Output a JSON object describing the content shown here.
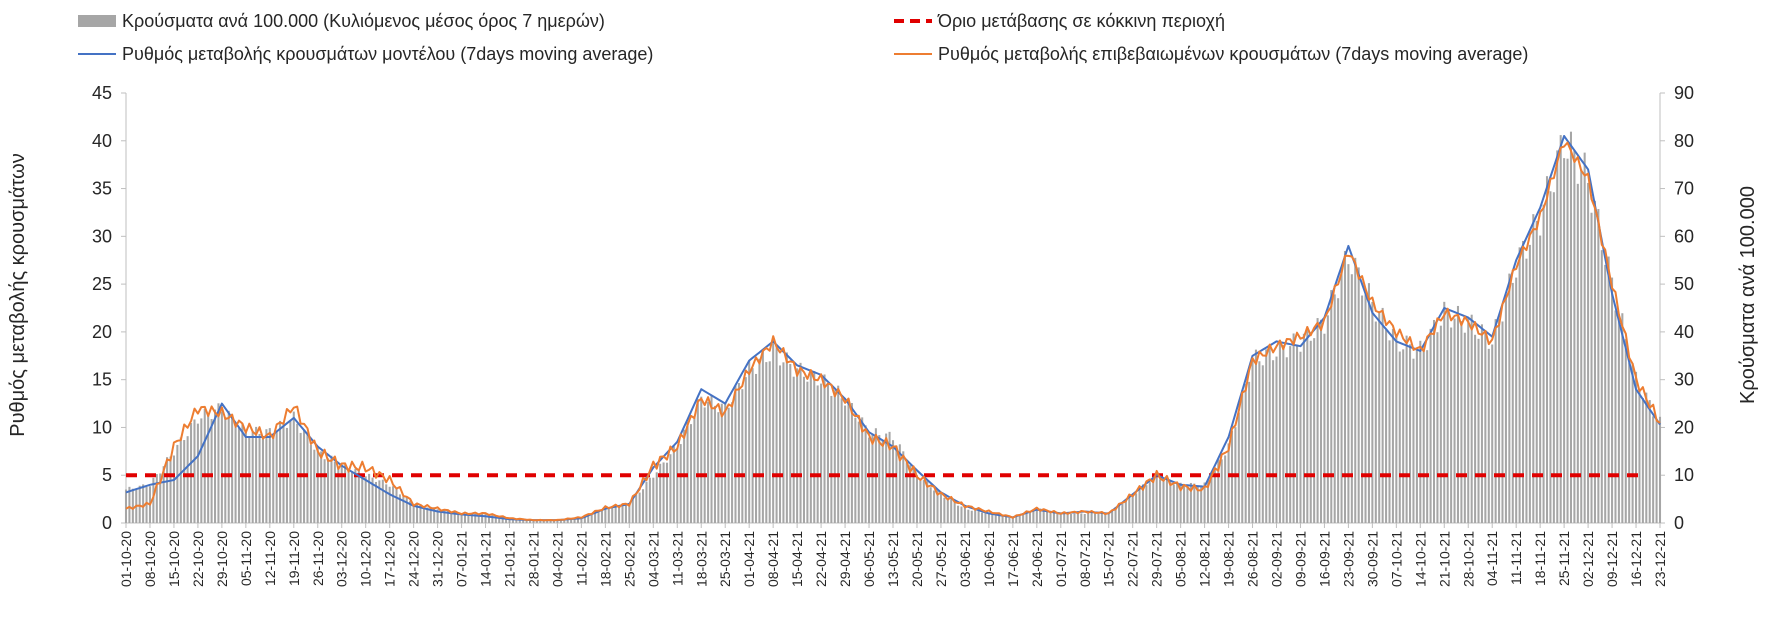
{
  "chart_data": {
    "type": "combo",
    "title": "",
    "legend": [
      {
        "key": "bars",
        "label": "Κρούσματα ανά 100.000 (Κυλιόμενος μέσος όρος 7 ημερών)",
        "color": "#a6a6a6"
      },
      {
        "key": "threshold",
        "label": "Όριο μετάβασης σε κόκκινη περιοχή",
        "color": "#e00000"
      },
      {
        "key": "model",
        "label": "Ρυθμός μεταβολής κρουσμάτων μοντέλου (7days moving average)",
        "color": "#4472c4"
      },
      {
        "key": "confirmed",
        "label": "Ρυθμός μεταβολής επιβεβαιωμένων κρουσμάτων (7days moving average)",
        "color": "#ed7d31"
      }
    ],
    "ylabel_left": "Ρυθμός μεταβολής κρουσμάτων",
    "ylabel_right": "Κρούσματα ανά 100.000",
    "ylim_left": [
      0,
      45
    ],
    "ylim_right": [
      0,
      90
    ],
    "yticks_left": [
      "0",
      "5",
      "10",
      "15",
      "20",
      "25",
      "30",
      "35",
      "40",
      "45"
    ],
    "yticks_right": [
      "0",
      "10",
      "20",
      "30",
      "40",
      "50",
      "60",
      "70",
      "80",
      "90"
    ],
    "threshold_value": 5,
    "x_labels": [
      "01-10-20",
      "08-10-20",
      "15-10-20",
      "22-10-20",
      "29-10-20",
      "05-11-20",
      "12-11-20",
      "19-11-20",
      "26-11-20",
      "03-12-20",
      "10-12-20",
      "17-12-20",
      "24-12-20",
      "31-12-20",
      "07-01-21",
      "14-01-21",
      "21-01-21",
      "28-01-21",
      "04-02-21",
      "11-02-21",
      "18-02-21",
      "25-02-21",
      "04-03-21",
      "11-03-21",
      "18-03-21",
      "25-03-21",
      "01-04-21",
      "08-04-21",
      "15-04-21",
      "22-04-21",
      "29-04-21",
      "06-05-21",
      "13-05-21",
      "20-05-21",
      "27-05-21",
      "03-06-21",
      "10-06-21",
      "17-06-21",
      "24-06-21",
      "01-07-21",
      "08-07-21",
      "15-07-21",
      "22-07-21",
      "29-07-21",
      "05-08-21",
      "12-08-21",
      "19-08-21",
      "26-08-21",
      "02-09-21",
      "09-09-21",
      "16-09-21",
      "23-09-21",
      "30-09-21",
      "07-10-21",
      "14-10-21",
      "21-10-21",
      "28-10-21",
      "04-11-21",
      "11-11-21",
      "18-11-21",
      "25-11-21",
      "02-12-21",
      "09-12-21",
      "16-12-21",
      "23-12-21"
    ],
    "series_weekly": {
      "bars_per_100k": [
        7,
        8,
        15,
        22,
        24,
        19,
        19,
        22,
        15,
        12,
        10,
        8,
        4,
        3,
        2,
        2,
        1,
        0.5,
        0.5,
        1,
        3,
        4,
        10,
        16,
        26,
        24,
        32,
        36,
        32,
        30,
        26,
        19,
        18,
        10,
        6,
        3,
        2,
        1,
        3,
        2,
        2,
        2,
        6,
        10,
        8,
        8,
        16,
        34,
        36,
        38,
        42,
        56,
        46,
        38,
        36,
        44,
        42,
        38,
        54,
        64,
        80,
        72,
        50,
        30,
        21
      ],
      "confirmed_rate": [
        1.5,
        2.0,
        8.0,
        12.0,
        11.5,
        10.0,
        9.0,
        12.3,
        7.5,
        6.0,
        5.8,
        4.5,
        2.0,
        1.5,
        1.0,
        1.0,
        0.5,
        0.3,
        0.3,
        0.6,
        1.6,
        2.0,
        6.0,
        8.0,
        13.0,
        11.5,
        16.0,
        19.0,
        16.0,
        15.0,
        13.0,
        9.0,
        8.0,
        5.0,
        3.0,
        1.8,
        1.2,
        0.6,
        1.5,
        1.0,
        1.2,
        1.0,
        3.0,
        5.0,
        3.8,
        3.5,
        8.0,
        17.0,
        18.5,
        19.5,
        21.0,
        28.5,
        23.0,
        20.0,
        18.0,
        22.0,
        21.0,
        19.0,
        27.0,
        32.0,
        40.0,
        36.0,
        25.0,
        15.0,
        10.5
      ],
      "model_rate": [
        3.2,
        4.0,
        4.5,
        7.0,
        12.5,
        9.0,
        9.0,
        11.0,
        8.0,
        6.0,
        4.5,
        3.0,
        1.8,
        1.2,
        0.9,
        0.7,
        0.4,
        0.3,
        0.3,
        0.5,
        1.5,
        2.0,
        5.8,
        8.5,
        14.0,
        12.5,
        17.0,
        19.0,
        16.5,
        15.5,
        13.0,
        9.5,
        8.0,
        5.5,
        3.2,
        1.8,
        1.0,
        0.6,
        1.4,
        1.0,
        1.2,
        1.0,
        3.0,
        5.0,
        4.0,
        3.8,
        9.0,
        17.5,
        19.0,
        18.5,
        21.5,
        29.0,
        22.0,
        19.0,
        18.0,
        22.5,
        21.5,
        19.5,
        27.5,
        33.0,
        40.5,
        37.0,
        24.0,
        14.0,
        10.3
      ]
    }
  }
}
